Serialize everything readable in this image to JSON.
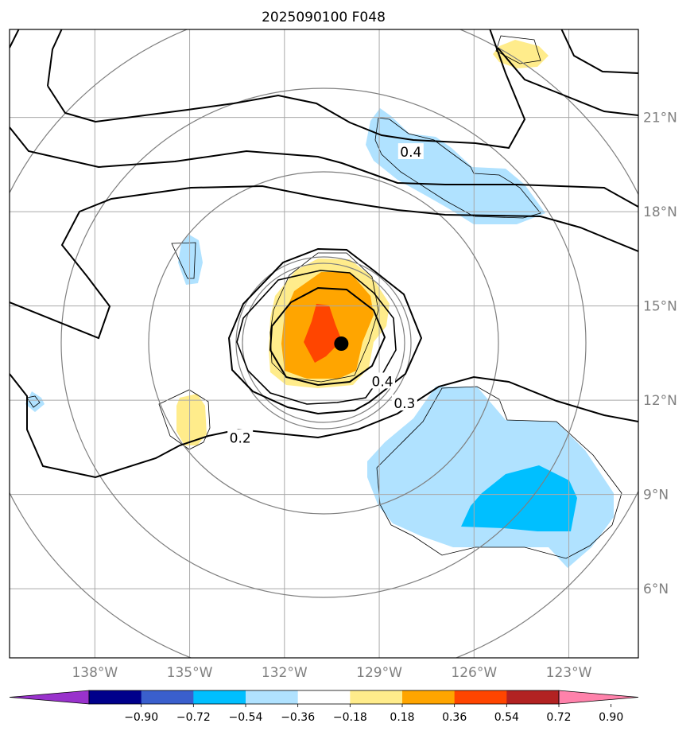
{
  "chart_data": {
    "type": "contour-map",
    "title": "2025090100 F048",
    "longitude_ticks": [
      -138,
      -135,
      -132,
      -129,
      -126,
      -123
    ],
    "longitude_tick_labels": [
      "138°W",
      "135°W",
      "132°W",
      "129°W",
      "126°W",
      "123°W"
    ],
    "latitude_ticks": [
      6,
      9,
      12,
      15,
      18,
      21
    ],
    "latitude_tick_labels": [
      "6°N",
      "9°N",
      "12°N",
      "15°N",
      "18°N",
      "21°N"
    ],
    "lon_range": [
      -140.7,
      -120.8
    ],
    "lat_range": [
      3.8,
      23.8
    ],
    "grid": true,
    "center_marker": {
      "lon": -130.2,
      "lat": 13.8
    },
    "contour_labels": [
      {
        "text": "0.4",
        "lon": -128.0,
        "lat": 19.9
      },
      {
        "text": "0.4",
        "lon": -128.9,
        "lat": 12.6
      },
      {
        "text": "0.3",
        "lon": -128.2,
        "lat": 11.9
      },
      {
        "text": "0.2",
        "lon": -133.4,
        "lat": 10.8
      }
    ],
    "colorbar": {
      "ticks": [
        "−0.90",
        "−0.72",
        "−0.54",
        "−0.36",
        "−0.18",
        "0.18",
        "0.36",
        "0.54",
        "0.72",
        "0.90"
      ],
      "colors": [
        "#9932cc",
        "#00008b",
        "#3a5fcd",
        "#00bfff",
        "#b0e2ff",
        "#ffffff",
        "#ffec8b",
        "#ffa500",
        "#ff4500",
        "#b22222",
        "#ff82ab"
      ],
      "extend": "both"
    }
  }
}
